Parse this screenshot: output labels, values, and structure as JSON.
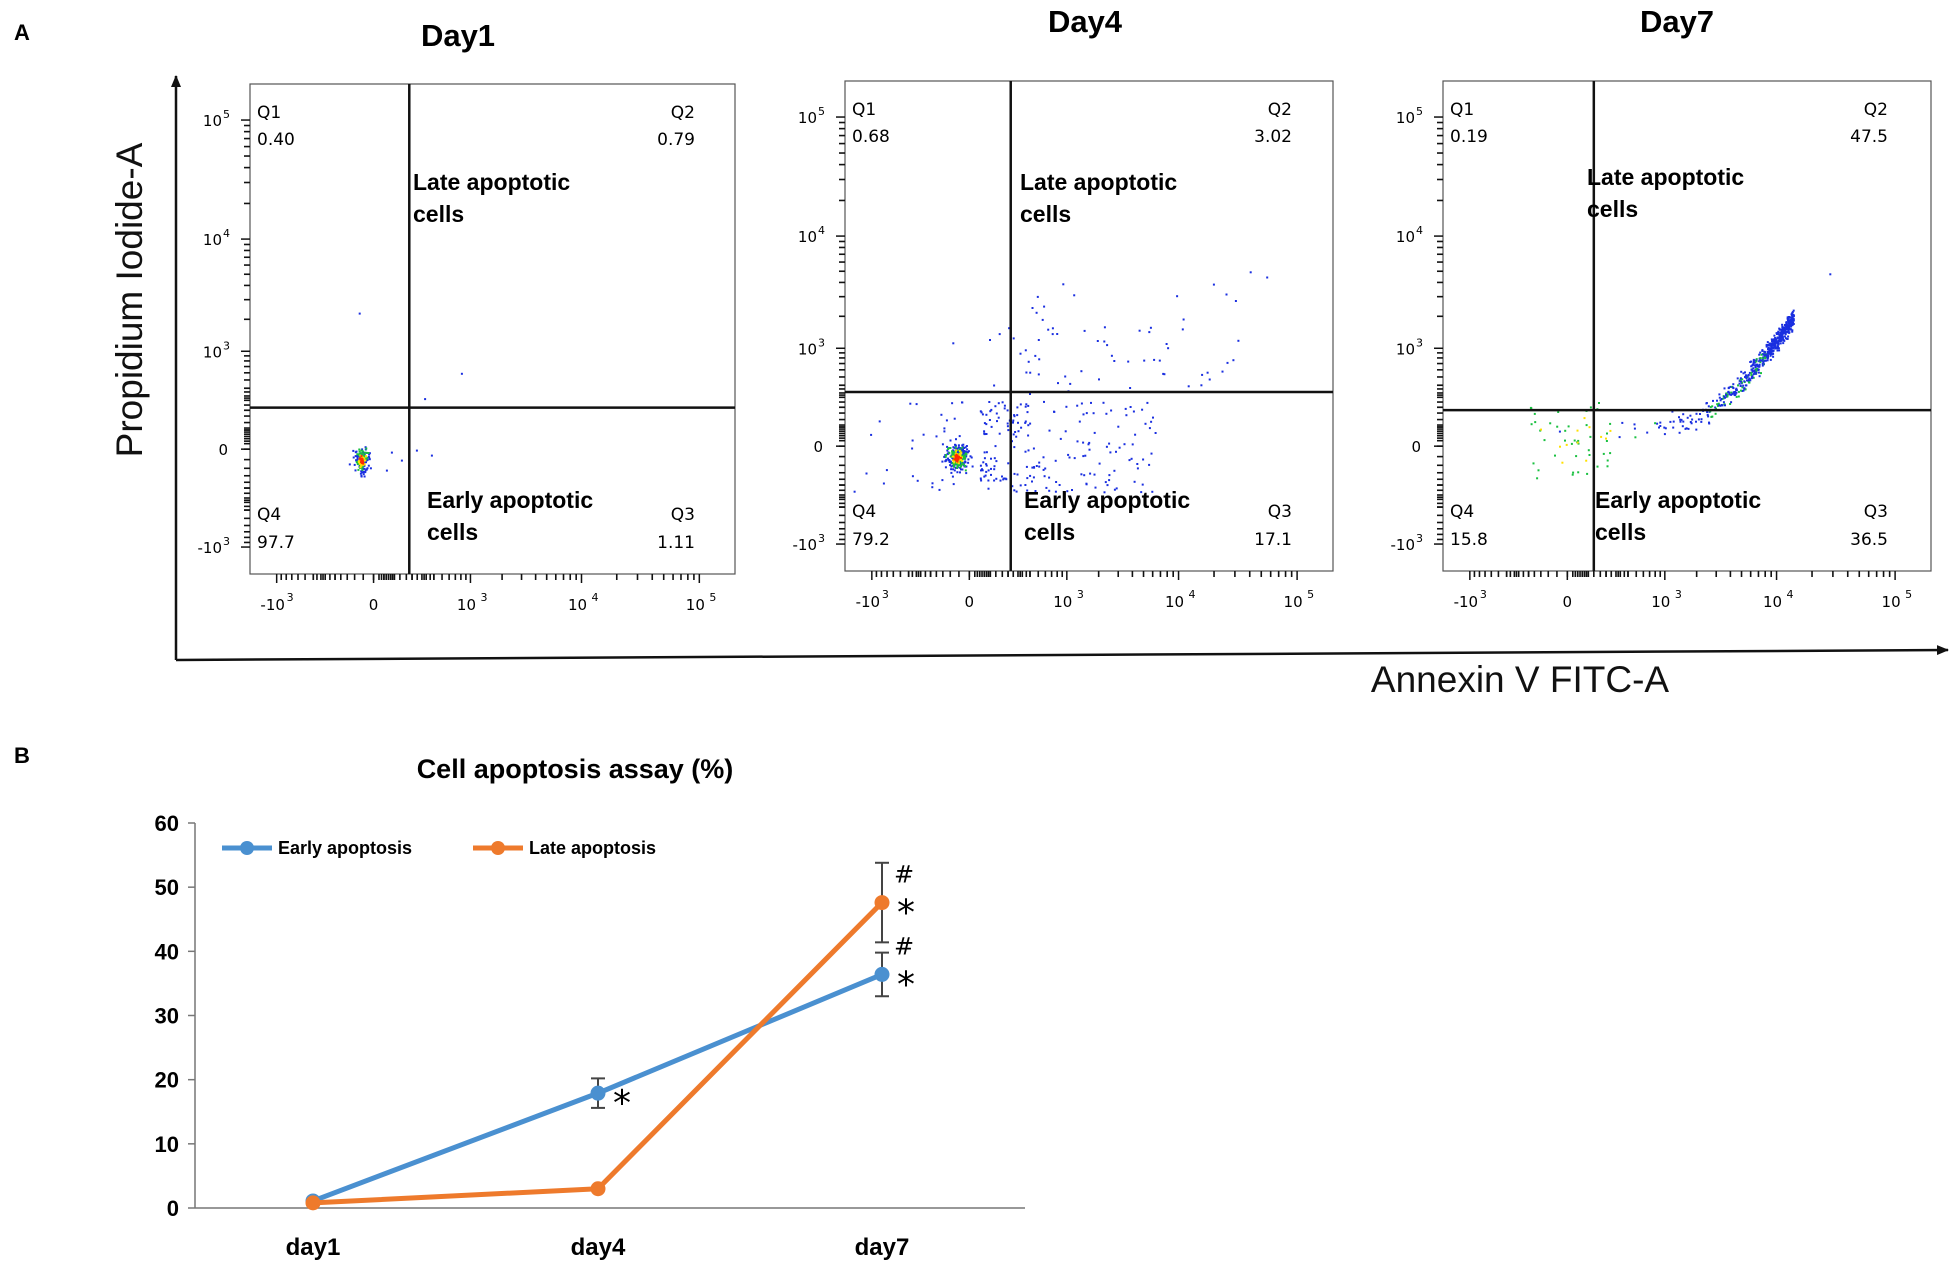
{
  "colors": {
    "axis": "#111111",
    "early": "#4a90d0",
    "late": "#ee7a2c",
    "error_bar": "#444444",
    "density_high": "#ff2a00",
    "density_mid": "#ffe000",
    "density_green": "#19c040",
    "density_low": "#1a2fe0"
  },
  "panel_a": {
    "label": "A",
    "y_axis_label": "Propidium Iodide-A",
    "x_axis_label": "Annexin V FITC-A",
    "region_labels": {
      "late": "Late apoptotic",
      "late2": "cells",
      "early": "Early apoptotic",
      "early2": "cells"
    },
    "y_ticks": [
      {
        "base": "10",
        "exp": "5",
        "value": 100000
      },
      {
        "base": "10",
        "exp": "4",
        "value": 10000
      },
      {
        "base": "10",
        "exp": "3",
        "value": 1000
      },
      {
        "base": "0",
        "exp": "",
        "value": 0
      },
      {
        "base": "-10",
        "exp": "3",
        "value": -1000
      }
    ],
    "x_ticks": [
      {
        "base": "-10",
        "exp": "3",
        "value": -1000
      },
      {
        "base": "0",
        "exp": "",
        "value": 0
      },
      {
        "base": "10",
        "exp": "3",
        "value": 1000
      },
      {
        "base": "10",
        "exp": "4",
        "value": 10000
      },
      {
        "base": "10",
        "exp": "5",
        "value": 100000
      }
    ]
  },
  "chart_data": [
    {
      "type": "scatter",
      "title": "Day1",
      "xlabel": "Annexin V FITC-A",
      "ylabel": "Propidium Iodide-A",
      "scale": "biexponential",
      "xlim": [
        -1800,
        200000
      ],
      "ylim": [
        -1800,
        200000
      ],
      "gates": {
        "x": 180,
        "y": 220
      },
      "quadrants": [
        {
          "name": "Q1",
          "value": "0.40"
        },
        {
          "name": "Q2",
          "value": "0.79"
        },
        {
          "name": "Q3",
          "value": "1.11"
        },
        {
          "name": "Q4",
          "value": "97.7"
        }
      ]
    },
    {
      "type": "scatter",
      "title": "Day4",
      "xlabel": "Annexin V FITC-A",
      "ylabel": "Propidium Iodide-A",
      "scale": "biexponential",
      "xlim": [
        -1800,
        200000
      ],
      "ylim": [
        -1800,
        200000
      ],
      "gates": {
        "x": 220,
        "y": 330
      },
      "quadrants": [
        {
          "name": "Q1",
          "value": "0.68"
        },
        {
          "name": "Q2",
          "value": "3.02"
        },
        {
          "name": "Q3",
          "value": "17.1"
        },
        {
          "name": "Q4",
          "value": "79.2"
        }
      ]
    },
    {
      "type": "scatter",
      "title": "Day7",
      "xlabel": "Annexin V FITC-A",
      "ylabel": "Propidium Iodide-A",
      "scale": "biexponential",
      "xlim": [
        -1800,
        200000
      ],
      "ylim": [
        -1800,
        200000
      ],
      "gates": {
        "x": 120,
        "y": 180
      },
      "quadrants": [
        {
          "name": "Q1",
          "value": "0.19"
        },
        {
          "name": "Q2",
          "value": "47.5"
        },
        {
          "name": "Q3",
          "value": "36.5"
        },
        {
          "name": "Q4",
          "value": "15.8"
        }
      ]
    },
    {
      "type": "line",
      "panel_label": "B",
      "title": "Cell apoptosis assay (%)",
      "xlabel": "",
      "ylabel": "",
      "categories": [
        "day1",
        "day4",
        "day7"
      ],
      "ylim": [
        0,
        60
      ],
      "yticks": [
        0,
        10,
        20,
        30,
        40,
        50,
        60
      ],
      "legend_position": "top-left",
      "series": [
        {
          "name": "Early apoptosis",
          "color": "#4a90d0",
          "values": [
            1.1,
            17.9,
            36.4
          ],
          "errors": [
            0.3,
            2.3,
            3.4
          ],
          "annotations": [
            "",
            "*",
            "*#"
          ]
        },
        {
          "name": "Late apoptosis",
          "color": "#ee7a2c",
          "values": [
            0.8,
            3.0,
            47.6
          ],
          "errors": [
            0.2,
            0.3,
            6.2
          ],
          "annotations": [
            "",
            "",
            "*#"
          ]
        }
      ]
    }
  ]
}
